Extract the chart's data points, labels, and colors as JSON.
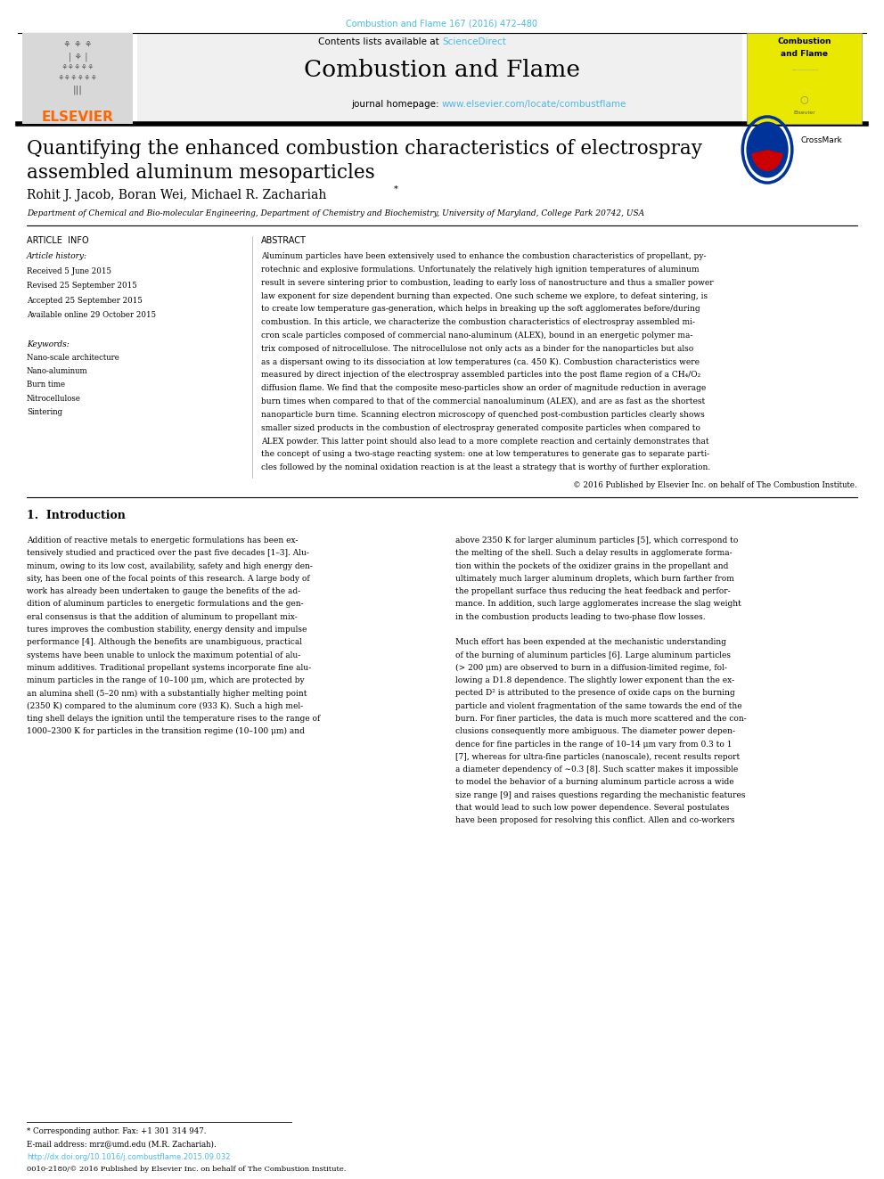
{
  "page_width": 9.92,
  "page_height": 13.23,
  "bg_color": "#ffffff",
  "top_journal_ref": "Combustion and Flame 167 (2016) 472–480",
  "top_journal_ref_color": "#4db8e8",
  "header_bg": "#f0f0f0",
  "header_title": "Combustion and Flame",
  "contents_text": "Contents lists available at ",
  "sciencedirect_text": "ScienceDirect",
  "sciencedirect_color": "#4db8e8",
  "journal_homepage_text": "journal homepage: ",
  "journal_url": "www.elsevier.com/locate/combustflame",
  "journal_url_color": "#4db8e8",
  "elsevier_color": "#ff6600",
  "article_title_line1": "Quantifying the enhanced combustion characteristics of electrospray",
  "article_title_line2": "assembled aluminum mesoparticles",
  "authors": "Rohit J. Jacob, Boran Wei, Michael R. Zachariah",
  "affiliation": "Department of Chemical and Bio-molecular Engineering, Department of Chemistry and Biochemistry, University of Maryland, College Park 20742, USA",
  "article_info_label": "ARTICLE  INFO",
  "abstract_label": "ABSTRACT",
  "article_history_label": "Article history:",
  "received": "Received 5 June 2015",
  "revised": "Revised 25 September 2015",
  "accepted": "Accepted 25 September 2015",
  "available": "Available online 29 October 2015",
  "keywords_label": "Keywords:",
  "keywords": [
    "Nano-scale architecture",
    "Nano-aluminum",
    "Burn time",
    "Nitrocellulose",
    "Sintering"
  ],
  "copyright_text": "© 2016 Published by Elsevier Inc. on behalf of The Combustion Institute.",
  "intro_heading": "1.  Introduction",
  "footnote_star": "* Corresponding author. Fax: +1 301 314 947.",
  "footnote_email": "E-mail address: mrz@umd.edu (M.R. Zachariah).",
  "doi_text": "http://dx.doi.org/10.1016/j.combustflame.2015.09.032",
  "issn_text": "0010-2180/© 2016 Published by Elsevier Inc. on behalf of The Combustion Institute.",
  "abstract_lines": [
    "Aluminum particles have been extensively used to enhance the combustion characteristics of propellant, py-",
    "rotechnic and explosive formulations. Unfortunately the relatively high ignition temperatures of aluminum",
    "result in severe sintering prior to combustion, leading to early loss of nanostructure and thus a smaller power",
    "law exponent for size dependent burning than expected. One such scheme we explore, to defeat sintering, is",
    "to create low temperature gas-generation, which helps in breaking up the soft agglomerates before/during",
    "combustion. In this article, we characterize the combustion characteristics of electrospray assembled mi-",
    "cron scale particles composed of commercial nano-aluminum (ALEX), bound in an energetic polymer ma-",
    "trix composed of nitrocellulose. The nitrocellulose not only acts as a binder for the nanoparticles but also",
    "as a dispersant owing to its dissociation at low temperatures (ca. 450 K). Combustion characteristics were",
    "measured by direct injection of the electrospray assembled particles into the post flame region of a CH₄/O₂",
    "diffusion flame. We find that the composite meso-particles show an order of magnitude reduction in average",
    "burn times when compared to that of the commercial nanoaluminum (ALEX), and are as fast as the shortest",
    "nanoparticle burn time. Scanning electron microscopy of quenched post-combustion particles clearly shows",
    "smaller sized products in the combustion of electrospray generated composite particles when compared to",
    "ALEX powder. This latter point should also lead to a more complete reaction and certainly demonstrates that",
    "the concept of using a two-stage reacting system: one at low temperatures to generate gas to separate parti-",
    "cles followed by the nominal oxidation reaction is at the least a strategy that is worthy of further exploration."
  ],
  "intro_col1_lines": [
    "Addition of reactive metals to energetic formulations has been ex-",
    "tensively studied and practiced over the past five decades [1–3]. Alu-",
    "minum, owing to its low cost, availability, safety and high energy den-",
    "sity, has been one of the focal points of this research. A large body of",
    "work has already been undertaken to gauge the benefits of the ad-",
    "dition of aluminum particles to energetic formulations and the gen-",
    "eral consensus is that the addition of aluminum to propellant mix-",
    "tures improves the combustion stability, energy density and impulse",
    "performance [4]. Although the benefits are unambiguous, practical",
    "systems have been unable to unlock the maximum potential of alu-",
    "minum additives. Traditional propellant systems incorporate fine alu-",
    "minum particles in the range of 10–100 μm, which are protected by",
    "an alumina shell (5–20 nm) with a substantially higher melting point",
    "(2350 K) compared to the aluminum core (933 K). Such a high mel-",
    "ting shell delays the ignition until the temperature rises to the range of",
    "1000–2300 K for particles in the transition regime (10–100 μm) and"
  ],
  "intro_col2_lines": [
    "above 2350 K for larger aluminum particles [5], which correspond to",
    "the melting of the shell. Such a delay results in agglomerate forma-",
    "tion within the pockets of the oxidizer grains in the propellant and",
    "ultimately much larger aluminum droplets, which burn farther from",
    "the propellant surface thus reducing the heat feedback and perfor-",
    "mance. In addition, such large agglomerates increase the slag weight",
    "in the combustion products leading to two-phase flow losses.",
    "",
    "Much effort has been expended at the mechanistic understanding",
    "of the burning of aluminum particles [6]. Large aluminum particles",
    "(> 200 μm) are observed to burn in a diffusion-limited regime, fol-",
    "lowing a D1.8 dependence. The slightly lower exponent than the ex-",
    "pected D² is attributed to the presence of oxide caps on the burning",
    "particle and violent fragmentation of the same towards the end of the",
    "burn. For finer particles, the data is much more scattered and the con-",
    "clusions consequently more ambiguous. The diameter power depen-",
    "dence for fine particles in the range of 10–14 μm vary from 0.3 to 1",
    "[7], whereas for ultra-fine particles (nanoscale), recent results report",
    "a diameter dependency of ∼0.3 [8]. Such scatter makes it impossible",
    "to model the behavior of a burning aluminum particle across a wide",
    "size range [9] and raises questions regarding the mechanistic features",
    "that would lead to such low power dependence. Several postulates",
    "have been proposed for resolving this conflict. Allen and co-workers"
  ]
}
